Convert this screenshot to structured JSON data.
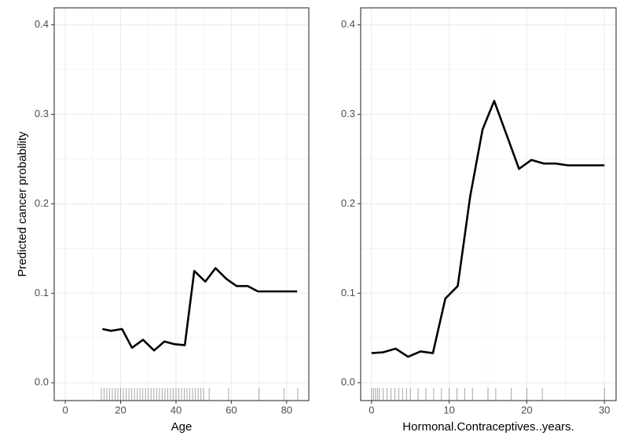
{
  "chart_data": [
    {
      "type": "line",
      "x_label": "Age",
      "y_label": "Predicted cancer probability",
      "color": "#000000",
      "grid": true,
      "x": [
        13.4,
        16.5,
        20.5,
        24.1,
        28.1,
        32.1,
        35.8,
        39.5,
        43.2,
        46.6,
        50.6,
        54.3,
        58.2,
        61.9,
        65.9,
        69.6,
        83.8
      ],
      "values": [
        0.06,
        0.058,
        0.06,
        0.039,
        0.048,
        0.036,
        0.046,
        0.043,
        0.042,
        0.125,
        0.113,
        0.128,
        0.116,
        0.108,
        0.108,
        0.102,
        0.102
      ],
      "rug": [
        13,
        14,
        15,
        16,
        17,
        18,
        19,
        20,
        21,
        22,
        23,
        24,
        25,
        26,
        27,
        28,
        29,
        30,
        31,
        32,
        33,
        34,
        35,
        36,
        37,
        38,
        39,
        40,
        41,
        42,
        43,
        44,
        45,
        46,
        47,
        48,
        49,
        50,
        52,
        59,
        70,
        79,
        84
      ],
      "xlim": [
        -4,
        88
      ],
      "xticks": [
        0,
        20,
        40,
        60,
        80
      ],
      "ylim": [
        -0.02,
        0.419
      ],
      "yticks": [
        {
          "value": 0,
          "label": "0.0"
        },
        0.1,
        0.2,
        0.3,
        0.4
      ]
    },
    {
      "type": "line",
      "x_label": "Hormonal.Contraceptives..years.",
      "color": "#000000",
      "grid": true,
      "x": [
        0,
        1.5,
        3.1,
        4.7,
        6.3,
        7.9,
        9.5,
        11.1,
        12.7,
        14.3,
        15.8,
        17.4,
        19.0,
        20.6,
        22.2,
        23.7,
        25.3,
        30
      ],
      "values": [
        0.033,
        0.034,
        0.038,
        0.029,
        0.035,
        0.033,
        0.094,
        0.108,
        0.208,
        0.283,
        0.315,
        0.277,
        0.239,
        0.249,
        0.245,
        0.245,
        0.243,
        0.243
      ],
      "rug": [
        0,
        0.25,
        0.5,
        0.75,
        1,
        1.5,
        2,
        2.5,
        3,
        3.5,
        4,
        4.5,
        5,
        6,
        7,
        8,
        9,
        10,
        11,
        12,
        13,
        15,
        16,
        18,
        20,
        22,
        30
      ],
      "xlim": [
        -1.4,
        31.5
      ],
      "xticks": [
        0,
        10,
        20,
        30
      ],
      "ylim": [
        -0.02,
        0.419
      ],
      "yticks": [
        {
          "value": 0,
          "label": "0.0"
        },
        0.1,
        0.2,
        0.3,
        0.4
      ]
    }
  ]
}
